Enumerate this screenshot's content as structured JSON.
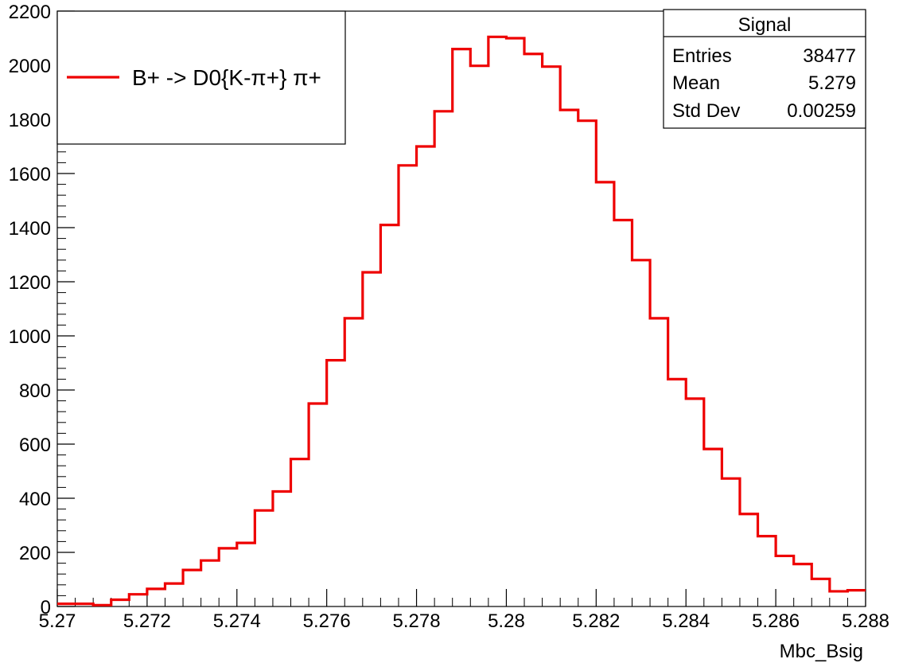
{
  "chart_data": {
    "type": "histogram",
    "title": "",
    "xlabel": "Mbc_Bsig",
    "ylabel": "",
    "xlim": [
      5.27,
      5.288
    ],
    "ylim": [
      0,
      2200
    ],
    "bin_width": 0.0004,
    "x_tick_labels": [
      "5.27",
      "5.272",
      "5.274",
      "5.276",
      "5.278",
      "5.28",
      "5.282",
      "5.284",
      "5.286",
      "5.288"
    ],
    "x_tick_values": [
      5.27,
      5.272,
      5.274,
      5.276,
      5.278,
      5.28,
      5.282,
      5.284,
      5.286,
      5.288
    ],
    "y_tick_labels": [
      "0",
      "200",
      "400",
      "600",
      "800",
      "1000",
      "1200",
      "1400",
      "1600",
      "1800",
      "2000",
      "2200"
    ],
    "y_tick_values": [
      0,
      200,
      400,
      600,
      800,
      1000,
      1200,
      1400,
      1600,
      1800,
      2000,
      2200
    ],
    "grid": false,
    "line_color": "#ee0000",
    "series": [
      {
        "name": "B+ -> D0{K-π+} π+",
        "bin_low_edges": [
          5.27,
          5.2704,
          5.2708,
          5.2712,
          5.2716,
          5.272,
          5.2724,
          5.2728,
          5.2732,
          5.2736,
          5.274,
          5.2744,
          5.2748,
          5.2752,
          5.2756,
          5.276,
          5.2764,
          5.2768,
          5.2772,
          5.2776,
          5.278,
          5.2784,
          5.2788,
          5.2792,
          5.2796,
          5.28,
          5.2804,
          5.2808,
          5.2812,
          5.2816,
          5.282,
          5.2824,
          5.2828,
          5.2832,
          5.2836,
          5.284,
          5.2844,
          5.2848,
          5.2852,
          5.2856,
          5.286,
          5.2864,
          5.2868,
          5.2872,
          5.2876
        ],
        "values": [
          10,
          10,
          5,
          25,
          45,
          65,
          85,
          135,
          170,
          215,
          235,
          355,
          425,
          545,
          750,
          910,
          1065,
          1235,
          1410,
          1630,
          1700,
          1830,
          2060,
          1998,
          2105,
          2100,
          2042,
          1995,
          1835,
          1795,
          1568,
          1428,
          1280,
          1065,
          840,
          768,
          582,
          473,
          342,
          260,
          187,
          157,
          102,
          56,
          60
        ]
      }
    ],
    "legend": {
      "position": "top-left",
      "entries": [
        "B+ -> D0{K-π+} π+"
      ]
    },
    "stats_box": {
      "position": "top-right",
      "title": "Signal",
      "rows": [
        {
          "label": "Entries",
          "value": "38477"
        },
        {
          "label": "Mean",
          "value": "5.279"
        },
        {
          "label": "Std Dev",
          "value": "0.00259"
        }
      ]
    }
  }
}
